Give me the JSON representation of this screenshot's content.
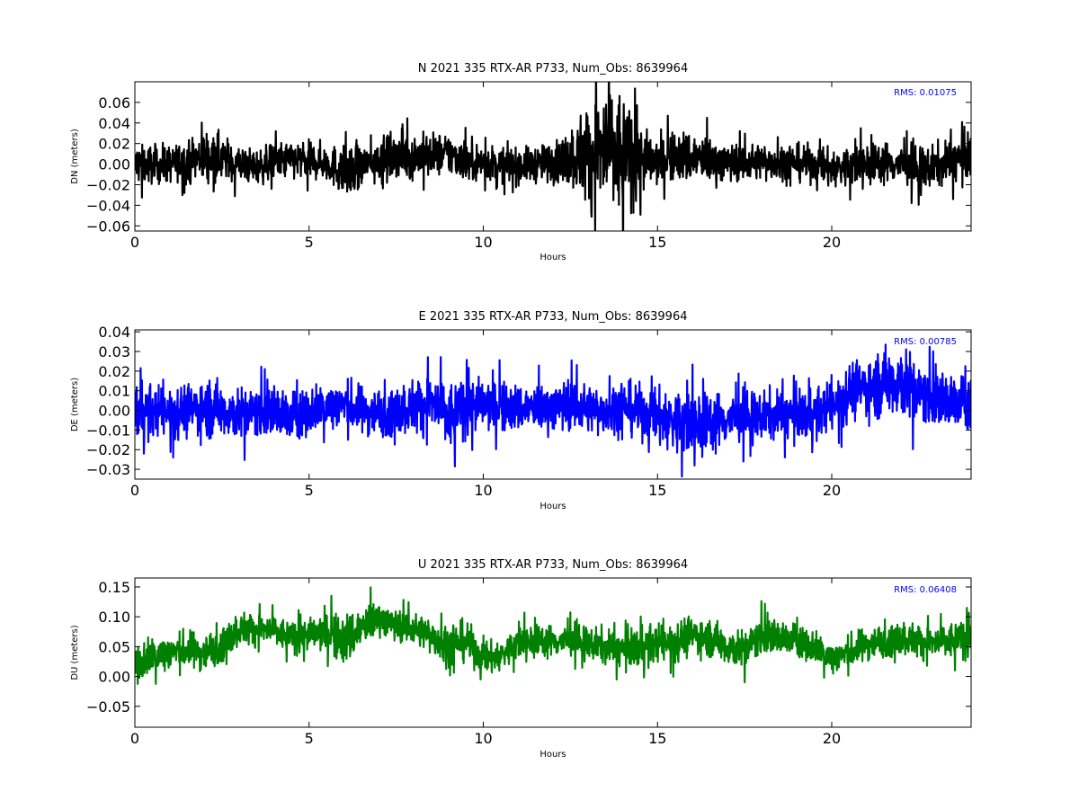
{
  "chart_data": [
    {
      "type": "line",
      "title": "N 2021 335 RTX-AR  P733, Num_Obs: 8639964",
      "xlabel": "Hours",
      "ylabel": "DN (meters)",
      "xlim": [
        0,
        24
      ],
      "ylim": [
        -0.065,
        0.08
      ],
      "xticks": [
        0,
        5,
        10,
        15,
        20
      ],
      "xtick_labels": [
        "0",
        "5",
        "10",
        "15",
        "20"
      ],
      "yticks": [
        -0.06,
        -0.04,
        -0.02,
        0.0,
        0.02,
        0.04,
        0.06
      ],
      "ytick_labels": [
        "−0.06",
        "−0.04",
        "−0.02",
        "0.00",
        "0.02",
        "0.04",
        "0.06"
      ],
      "grid": false,
      "color": "#000000",
      "annotation": {
        "text": "RMS:  0.01075",
        "color": "#0000ff",
        "placement": "top-right"
      },
      "series": [
        {
          "x": [
            0,
            0.5,
            1,
            1.5,
            2,
            2.5,
            3,
            3.5,
            4,
            4.5,
            5,
            5.5,
            6,
            6.5,
            7,
            7.5,
            8,
            8.5,
            9,
            9.5,
            10,
            10.5,
            11,
            11.5,
            12,
            12.5,
            13,
            13.5,
            14,
            14.5,
            15,
            15.5,
            16,
            16.5,
            17,
            17.5,
            18,
            18.5,
            19,
            19.5,
            20,
            20.5,
            21,
            21.5,
            22,
            22.5,
            23,
            23.5,
            24
          ],
          "y": [
            0.0,
            -0.001,
            0.0,
            0.002,
            0.008,
            0.006,
            0.0,
            -0.003,
            0.002,
            0.004,
            0.003,
            0.002,
            -0.008,
            -0.004,
            0.005,
            0.008,
            0.007,
            0.009,
            0.01,
            0.004,
            0.001,
            0.0,
            -0.002,
            0.0,
            0.002,
            0.006,
            0.01,
            0.012,
            0.008,
            0.004,
            0.002,
            0.008,
            0.006,
            0.004,
            0.002,
            0.001,
            0.003,
            0.002,
            0.001,
            0.0,
            -0.004,
            -0.003,
            0.0,
            0.002,
            0.0,
            -0.006,
            -0.002,
            0.004,
            0.008
          ],
          "env": [
            0.018,
            0.017,
            0.016,
            0.018,
            0.024,
            0.02,
            0.016,
            0.015,
            0.016,
            0.017,
            0.016,
            0.016,
            0.022,
            0.018,
            0.018,
            0.019,
            0.02,
            0.019,
            0.018,
            0.018,
            0.016,
            0.015,
            0.015,
            0.016,
            0.018,
            0.025,
            0.045,
            0.06,
            0.055,
            0.03,
            0.02,
            0.022,
            0.024,
            0.02,
            0.017,
            0.016,
            0.016,
            0.016,
            0.016,
            0.016,
            0.017,
            0.019,
            0.018,
            0.018,
            0.017,
            0.02,
            0.018,
            0.019,
            0.02
          ]
        }
      ]
    },
    {
      "type": "line",
      "title": "E 2021 335 RTX-AR  P733, Num_Obs: 8639964",
      "xlabel": "Hours",
      "ylabel": "DE (meters)",
      "xlim": [
        0,
        24
      ],
      "ylim": [
        -0.035,
        0.041
      ],
      "xticks": [
        0,
        5,
        10,
        15,
        20
      ],
      "xtick_labels": [
        "0",
        "5",
        "10",
        "15",
        "20"
      ],
      "yticks": [
        -0.03,
        -0.02,
        -0.01,
        0.0,
        0.01,
        0.02,
        0.03,
        0.04
      ],
      "ytick_labels": [
        "−0.03",
        "−0.02",
        "−0.01",
        "0.00",
        "0.01",
        "0.02",
        "0.03",
        "0.04"
      ],
      "grid": false,
      "color": "#0000ff",
      "annotation": {
        "text": "RMS:  0.00785",
        "color": "#0000ff",
        "placement": "top-right"
      },
      "series": [
        {
          "x": [
            0,
            0.5,
            1,
            1.5,
            2,
            2.5,
            3,
            3.5,
            4,
            4.5,
            5,
            5.5,
            6,
            6.5,
            7,
            7.5,
            8,
            8.5,
            9,
            9.5,
            10,
            10.5,
            11,
            11.5,
            12,
            12.5,
            13,
            13.5,
            14,
            14.5,
            15,
            15.5,
            16,
            16.5,
            17,
            17.5,
            18,
            18.5,
            19,
            19.5,
            20,
            20.5,
            21,
            21.5,
            22,
            22.5,
            23,
            23.5,
            24
          ],
          "y": [
            0.001,
            -0.001,
            0.0,
            0.0,
            0.002,
            0.0,
            -0.002,
            -0.001,
            0.0,
            -0.004,
            0.0,
            0.002,
            0.003,
            0.0,
            -0.001,
            0.0,
            0.002,
            0.004,
            -0.004,
            0.002,
            0.003,
            0.002,
            0.001,
            0.001,
            0.002,
            0.003,
            0.001,
            0.0,
            0.002,
            -0.001,
            -0.003,
            -0.006,
            -0.008,
            -0.006,
            -0.004,
            -0.004,
            -0.003,
            -0.002,
            -0.002,
            -0.002,
            0.002,
            0.01,
            0.012,
            0.014,
            0.015,
            0.008,
            0.006,
            0.004,
            0.003
          ],
          "env": [
            0.013,
            0.012,
            0.012,
            0.012,
            0.014,
            0.013,
            0.012,
            0.012,
            0.012,
            0.012,
            0.011,
            0.011,
            0.012,
            0.011,
            0.011,
            0.011,
            0.013,
            0.014,
            0.016,
            0.013,
            0.012,
            0.012,
            0.011,
            0.011,
            0.011,
            0.012,
            0.011,
            0.011,
            0.012,
            0.012,
            0.013,
            0.016,
            0.016,
            0.014,
            0.012,
            0.012,
            0.011,
            0.011,
            0.011,
            0.011,
            0.012,
            0.013,
            0.014,
            0.016,
            0.018,
            0.014,
            0.013,
            0.013,
            0.012
          ]
        }
      ]
    },
    {
      "type": "line",
      "title": "U 2021 335 RTX-AR  P733, Num_Obs: 8639964",
      "xlabel": "Hours",
      "ylabel": "DU (meters)",
      "xlim": [
        0,
        24
      ],
      "ylim": [
        -0.085,
        0.165
      ],
      "xticks": [
        0,
        5,
        10,
        15,
        20
      ],
      "xtick_labels": [
        "0",
        "5",
        "10",
        "15",
        "20"
      ],
      "yticks": [
        -0.05,
        0.0,
        0.05,
        0.1,
        0.15
      ],
      "ytick_labels": [
        "−0.05",
        "0.00",
        "0.05",
        "0.10",
        "0.15"
      ],
      "grid": false,
      "color": "#008000",
      "annotation": {
        "text": "RMS:  0.06408",
        "color": "#0000ff",
        "placement": "top-right"
      },
      "series": [
        {
          "x": [
            0,
            0.5,
            1,
            1.5,
            2,
            2.5,
            3,
            3.5,
            4,
            4.5,
            5,
            5.5,
            6,
            6.5,
            7,
            7.5,
            8,
            8.5,
            9,
            9.5,
            10,
            10.5,
            11,
            11.5,
            12,
            12.5,
            13,
            13.5,
            14,
            14.5,
            15,
            15.5,
            16,
            16.5,
            17,
            17.5,
            18,
            18.5,
            19,
            19.5,
            20,
            20.5,
            21,
            21.5,
            22,
            22.5,
            23,
            23.5,
            24
          ],
          "y": [
            0.02,
            0.035,
            0.04,
            0.045,
            0.04,
            0.055,
            0.08,
            0.08,
            0.075,
            0.065,
            0.07,
            0.075,
            0.06,
            0.08,
            0.1,
            0.085,
            0.08,
            0.07,
            0.05,
            0.06,
            0.03,
            0.035,
            0.055,
            0.06,
            0.06,
            0.06,
            0.055,
            0.05,
            0.045,
            0.05,
            0.055,
            0.06,
            0.07,
            0.065,
            0.05,
            0.045,
            0.07,
            0.065,
            0.06,
            0.05,
            0.03,
            0.04,
            0.055,
            0.06,
            0.065,
            0.06,
            0.055,
            0.06,
            0.065
          ],
          "env": [
            0.03,
            0.03,
            0.028,
            0.028,
            0.028,
            0.026,
            0.026,
            0.025,
            0.024,
            0.024,
            0.024,
            0.03,
            0.04,
            0.035,
            0.025,
            0.024,
            0.024,
            0.026,
            0.035,
            0.03,
            0.025,
            0.024,
            0.026,
            0.025,
            0.024,
            0.025,
            0.025,
            0.026,
            0.026,
            0.03,
            0.03,
            0.03,
            0.03,
            0.028,
            0.03,
            0.028,
            0.03,
            0.026,
            0.025,
            0.025,
            0.025,
            0.026,
            0.025,
            0.024,
            0.026,
            0.026,
            0.026,
            0.028,
            0.028
          ]
        }
      ]
    }
  ]
}
